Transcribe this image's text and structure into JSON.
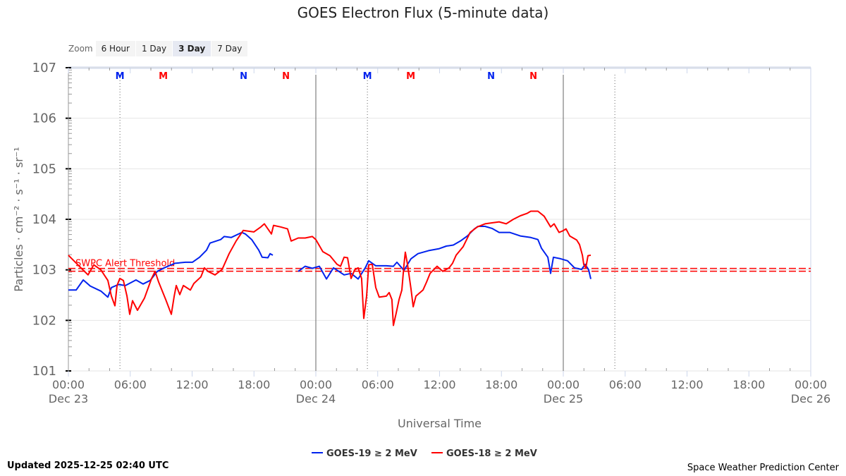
{
  "header": {
    "title": "GOES Electron Flux (5-minute data)"
  },
  "zoom": {
    "label": "Zoom",
    "buttons": [
      "6 Hour",
      "1 Day",
      "3 Day",
      "7 Day"
    ],
    "selected": "3 Day"
  },
  "footer": {
    "updated": "Updated 2025-12-25 02:40 UTC",
    "credit": "Space Weather Prediction Center"
  },
  "chart_data": {
    "type": "line",
    "title": "GOES Electron Flux (5-minute data)",
    "xlabel": "Universal Time",
    "ylabel": "Particles · cm⁻² · s⁻¹ · sr⁻¹",
    "y_scale": "log10",
    "ylim_log10": [
      1,
      7
    ],
    "xlim_hours_from_dec23_0000": [
      0,
      72
    ],
    "ytick_labels": [
      "101",
      "102",
      "103",
      "104",
      "105",
      "106",
      "107"
    ],
    "xtick_labels": [
      [
        "00:00",
        "Dec 23"
      ],
      [
        "06:00",
        ""
      ],
      [
        "12:00",
        ""
      ],
      [
        "18:00",
        ""
      ],
      [
        "00:00",
        "Dec 24"
      ],
      [
        "06:00",
        ""
      ],
      [
        "12:00",
        ""
      ],
      [
        "18:00",
        ""
      ],
      [
        "00:00",
        "Dec 25"
      ],
      [
        "06:00",
        ""
      ],
      [
        "12:00",
        ""
      ],
      [
        "18:00",
        ""
      ],
      [
        "00:00",
        "Dec 26"
      ]
    ],
    "threshold": {
      "label": "SWPC Alert Threshold",
      "log10_value": 3.0,
      "color": "#ff0000"
    },
    "markers": [
      {
        "text": "M",
        "hour": 5.0,
        "color": "#0022ee"
      },
      {
        "text": "M",
        "hour": 9.2,
        "color": "#ff0000"
      },
      {
        "text": "N",
        "hour": 17.0,
        "color": "#0022ee"
      },
      {
        "text": "N",
        "hour": 21.1,
        "color": "#ff0000"
      },
      {
        "text": "M",
        "hour": 29.0,
        "color": "#0022ee"
      },
      {
        "text": "M",
        "hour": 33.2,
        "color": "#ff0000"
      },
      {
        "text": "N",
        "hour": 41.0,
        "color": "#0022ee"
      },
      {
        "text": "N",
        "hour": 45.1,
        "color": "#ff0000"
      }
    ],
    "dotted_lines_hours": [
      5,
      29,
      53
    ],
    "solid_lines_hours": [
      24,
      48
    ],
    "series": [
      {
        "name": "GOES-19 ≥ 2 MeV",
        "color": "#0022ee",
        "points": [
          [
            0,
            2.6
          ],
          [
            0.75,
            2.6
          ],
          [
            1.44,
            2.8
          ],
          [
            2.12,
            2.68
          ],
          [
            3.15,
            2.58
          ],
          [
            3.83,
            2.46
          ],
          [
            4.17,
            2.65
          ],
          [
            4.85,
            2.71
          ],
          [
            5.54,
            2.69
          ],
          [
            6.56,
            2.8
          ],
          [
            7.25,
            2.72
          ],
          [
            7.93,
            2.79
          ],
          [
            8.62,
            2.97
          ],
          [
            9.3,
            3.04
          ],
          [
            10.32,
            3.13
          ],
          [
            11.35,
            3.15
          ],
          [
            12.03,
            3.15
          ],
          [
            12.72,
            3.25
          ],
          [
            13.4,
            3.39
          ],
          [
            13.74,
            3.53
          ],
          [
            14.77,
            3.6
          ],
          [
            15.11,
            3.66
          ],
          [
            15.79,
            3.64
          ],
          [
            16.82,
            3.74
          ],
          [
            17.16,
            3.71
          ],
          [
            17.78,
            3.6
          ],
          [
            18.46,
            3.39
          ],
          [
            18.8,
            3.25
          ],
          [
            19.35,
            3.24
          ],
          [
            19.56,
            3.32
          ],
          [
            19.83,
            3.29
          ],
          null,
          [
            22.29,
            2.97
          ],
          [
            22.97,
            3.07
          ],
          [
            23.66,
            3.03
          ],
          [
            24.34,
            3.07
          ],
          [
            25.03,
            2.82
          ],
          [
            25.71,
            3.04
          ],
          [
            26.74,
            2.9
          ],
          [
            27.42,
            2.93
          ],
          [
            28.1,
            2.82
          ],
          [
            28.79,
            3.04
          ],
          [
            29.13,
            3.18
          ],
          [
            29.81,
            3.08
          ],
          [
            30.84,
            3.08
          ],
          [
            31.52,
            3.07
          ],
          [
            31.86,
            3.15
          ],
          [
            32.55,
            2.99
          ],
          [
            33.23,
            3.22
          ],
          [
            33.91,
            3.32
          ],
          [
            34.94,
            3.38
          ],
          [
            35.97,
            3.42
          ],
          [
            36.65,
            3.47
          ],
          [
            37.33,
            3.49
          ],
          [
            38.02,
            3.57
          ],
          [
            38.7,
            3.67
          ],
          [
            39.38,
            3.81
          ],
          [
            39.73,
            3.86
          ],
          [
            40.41,
            3.86
          ],
          [
            41.09,
            3.82
          ],
          [
            41.78,
            3.74
          ],
          [
            42.8,
            3.74
          ],
          [
            43.83,
            3.67
          ],
          [
            44.85,
            3.64
          ],
          [
            45.54,
            3.6
          ],
          [
            45.88,
            3.43
          ],
          [
            46.5,
            3.25
          ],
          [
            46.77,
            2.93
          ],
          [
            47.04,
            3.25
          ],
          [
            47.73,
            3.22
          ],
          [
            48.41,
            3.18
          ],
          [
            49.09,
            3.04
          ],
          [
            49.78,
            3.01
          ],
          [
            50.12,
            3.11
          ],
          [
            50.46,
            3.0
          ],
          [
            50.67,
            2.82
          ]
        ]
      },
      {
        "name": "GOES-18 ≥ 2 MeV",
        "color": "#ff0000",
        "points": [
          [
            0,
            3.29
          ],
          [
            0.68,
            3.15
          ],
          [
            1.37,
            3.01
          ],
          [
            1.91,
            2.9
          ],
          [
            2.46,
            3.1
          ],
          [
            3.15,
            3.0
          ],
          [
            3.83,
            2.79
          ],
          [
            4.17,
            2.48
          ],
          [
            4.51,
            2.29
          ],
          [
            4.72,
            2.69
          ],
          [
            4.99,
            2.83
          ],
          [
            5.33,
            2.79
          ],
          [
            5.68,
            2.48
          ],
          [
            5.95,
            2.12
          ],
          [
            6.22,
            2.39
          ],
          [
            6.7,
            2.2
          ],
          [
            7.38,
            2.44
          ],
          [
            8.07,
            2.83
          ],
          [
            8.41,
            2.97
          ],
          [
            8.75,
            2.76
          ],
          [
            9.44,
            2.41
          ],
          [
            9.98,
            2.12
          ],
          [
            10.26,
            2.48
          ],
          [
            10.46,
            2.69
          ],
          [
            10.8,
            2.51
          ],
          [
            11.15,
            2.69
          ],
          [
            11.83,
            2.6
          ],
          [
            12.17,
            2.73
          ],
          [
            12.85,
            2.86
          ],
          [
            13.2,
            3.04
          ],
          [
            13.54,
            2.97
          ],
          [
            14.22,
            2.9
          ],
          [
            14.91,
            3.01
          ],
          [
            15.59,
            3.32
          ],
          [
            16.27,
            3.57
          ],
          [
            16.96,
            3.78
          ],
          [
            17.98,
            3.75
          ],
          [
            18.67,
            3.85
          ],
          [
            19.01,
            3.91
          ],
          [
            19.69,
            3.71
          ],
          [
            19.9,
            3.88
          ],
          [
            20.58,
            3.85
          ],
          [
            21.26,
            3.81
          ],
          [
            21.61,
            3.57
          ],
          [
            22.29,
            3.63
          ],
          [
            22.97,
            3.63
          ],
          [
            23.66,
            3.66
          ],
          [
            24.0,
            3.6
          ],
          [
            24.68,
            3.36
          ],
          [
            25.37,
            3.28
          ],
          [
            26.05,
            3.11
          ],
          [
            26.39,
            3.07
          ],
          [
            26.74,
            3.25
          ],
          [
            27.08,
            3.24
          ],
          [
            27.42,
            2.83
          ],
          [
            27.76,
            3.0
          ],
          [
            28.1,
            3.04
          ],
          [
            28.44,
            2.83
          ],
          [
            28.65,
            2.04
          ],
          [
            28.92,
            2.48
          ],
          [
            29.13,
            3.1
          ],
          [
            29.47,
            3.11
          ],
          [
            29.81,
            2.65
          ],
          [
            30.15,
            2.46
          ],
          [
            30.84,
            2.48
          ],
          [
            31.11,
            2.55
          ],
          [
            31.38,
            2.41
          ],
          [
            31.52,
            1.9
          ],
          [
            31.79,
            2.14
          ],
          [
            32.07,
            2.41
          ],
          [
            32.34,
            2.6
          ],
          [
            32.55,
            3.1
          ],
          [
            32.68,
            3.35
          ],
          [
            32.89,
            3.11
          ],
          [
            33.23,
            2.62
          ],
          [
            33.44,
            2.27
          ],
          [
            33.71,
            2.48
          ],
          [
            34.39,
            2.6
          ],
          [
            34.74,
            2.76
          ],
          [
            35.08,
            2.93
          ],
          [
            35.76,
            3.07
          ],
          [
            36.31,
            2.97
          ],
          [
            36.92,
            3.04
          ],
          [
            37.26,
            3.13
          ],
          [
            37.61,
            3.29
          ],
          [
            38.29,
            3.46
          ],
          [
            38.97,
            3.74
          ],
          [
            39.66,
            3.85
          ],
          [
            40.41,
            3.91
          ],
          [
            41.09,
            3.93
          ],
          [
            41.78,
            3.95
          ],
          [
            42.46,
            3.91
          ],
          [
            43.15,
            4.0
          ],
          [
            43.83,
            4.07
          ],
          [
            44.51,
            4.12
          ],
          [
            44.85,
            4.16
          ],
          [
            45.54,
            4.16
          ],
          [
            46.15,
            4.06
          ],
          [
            46.77,
            3.85
          ],
          [
            47.11,
            3.91
          ],
          [
            47.59,
            3.74
          ],
          [
            47.93,
            3.77
          ],
          [
            48.27,
            3.81
          ],
          [
            48.62,
            3.67
          ],
          [
            49.3,
            3.59
          ],
          [
            49.57,
            3.5
          ],
          [
            49.85,
            3.29
          ],
          [
            49.98,
            3.11
          ],
          [
            50.19,
            3.04
          ],
          [
            50.39,
            3.28
          ],
          [
            50.67,
            3.29
          ]
        ]
      }
    ]
  }
}
